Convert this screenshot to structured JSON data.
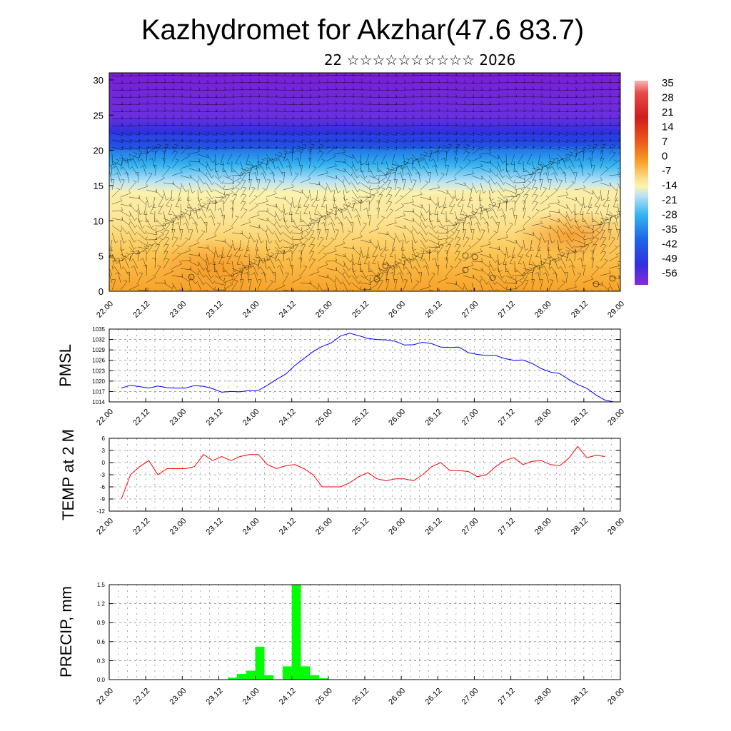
{
  "title": "Kazhydromet for Akzhar(47.6 83.7)",
  "subtitle": "22 ☆☆☆☆☆☆☆☆☆☆ 2026",
  "colors": {
    "pmsl_line": "#0000ff",
    "temp_line": "#ff0000",
    "precip_bar": "#00ff00",
    "barb": "#000000",
    "grid": "#000000"
  },
  "chart_data": [
    {
      "id": "cross-section",
      "type": "heatmap",
      "ylim": [
        0,
        30
      ],
      "y_ticks": [
        "0",
        "5",
        "10",
        "15",
        "20",
        "25",
        "30"
      ],
      "x_ticks": [
        "22.00",
        "22.12",
        "23.00",
        "23.12",
        "24.00",
        "24.12",
        "25.00",
        "25.12",
        "26.00",
        "26.12",
        "27.00",
        "27.12",
        "28.00",
        "28.12",
        "29.00"
      ],
      "colorbar_levels": [
        "35",
        "28",
        "21",
        "14",
        "7",
        "0",
        "-7",
        "-14",
        "-21",
        "-28",
        "-35",
        "-42",
        "-49",
        "-56"
      ]
    },
    {
      "id": "pmsl",
      "type": "line",
      "ylabel": "PMSL",
      "ylim": [
        1014,
        1035
      ],
      "y_ticks": [
        "1014",
        "1017",
        "1020",
        "1023",
        "1026",
        "1029",
        "1032",
        "1035"
      ],
      "x_ticks": [
        "22.00",
        "22.12",
        "23.00",
        "23.12",
        "24.00",
        "24.12",
        "25.00",
        "25.12",
        "26.00",
        "26.12",
        "27.00",
        "27.12",
        "28.00",
        "28.12",
        "29.00"
      ],
      "x_hours": [
        0,
        3,
        6,
        9,
        12,
        15,
        18,
        21,
        24,
        27,
        30,
        33,
        36,
        39,
        42,
        45,
        48,
        51,
        54,
        57,
        60,
        63,
        66,
        69,
        72,
        75,
        78,
        81,
        84,
        87,
        90,
        93,
        96,
        99,
        102,
        105,
        108,
        111,
        114,
        117,
        120,
        123,
        126,
        129,
        132,
        135,
        138,
        141,
        144,
        147,
        150,
        153,
        156,
        159,
        162
      ],
      "values": [
        1018,
        1018.8,
        1018.4,
        1018,
        1018.6,
        1018.1,
        1018,
        1018,
        1018.7,
        1018.5,
        1017.8,
        1016.8,
        1017,
        1016.9,
        1017.3,
        1017.3,
        1018.8,
        1020.5,
        1022,
        1024.5,
        1026.5,
        1028.5,
        1030,
        1031,
        1033,
        1033.8,
        1033.1,
        1032.3,
        1032,
        1031.9,
        1031.5,
        1030.4,
        1030.5,
        1031.2,
        1030.8,
        1029.8,
        1029.7,
        1029.8,
        1028.2,
        1027.7,
        1027.4,
        1027.4,
        1026.5,
        1026,
        1026.1,
        1025.1,
        1023.6,
        1022.6,
        1022.2,
        1020.5,
        1019,
        1017.9,
        1016,
        1014.5,
        1014
      ]
    },
    {
      "id": "temp",
      "type": "line",
      "ylabel": "TEMP at 2 M",
      "ylim": [
        -12,
        6
      ],
      "y_ticks": [
        "-12",
        "-9",
        "-6",
        "-3",
        "0",
        "3",
        "6"
      ],
      "x_ticks": [
        "22.00",
        "22.12",
        "23.00",
        "23.12",
        "24.00",
        "24.12",
        "25.00",
        "25.12",
        "26.00",
        "26.12",
        "27.00",
        "27.12",
        "28.00",
        "28.12",
        "29.00"
      ],
      "x_hours": [
        0,
        3,
        6,
        9,
        12,
        15,
        18,
        21,
        24,
        27,
        30,
        33,
        36,
        39,
        42,
        45,
        48,
        51,
        54,
        57,
        60,
        63,
        66,
        69,
        72,
        75,
        78,
        81,
        84,
        87,
        90,
        93,
        96,
        99,
        102,
        105,
        108,
        111,
        114,
        117,
        120,
        123,
        126,
        129,
        132,
        135,
        138,
        141,
        144,
        147,
        150,
        153,
        156,
        159
      ],
      "values": [
        -9,
        -3,
        -1,
        0.5,
        -3,
        -1.5,
        -1.5,
        -1.5,
        -1,
        2,
        0.5,
        1.5,
        0.5,
        1.5,
        2,
        2,
        -0.5,
        -1.5,
        -0.8,
        -0.5,
        -1.5,
        -3,
        -6,
        -6,
        -6,
        -5,
        -3.5,
        -2.5,
        -4,
        -4.5,
        -4,
        -4,
        -4.5,
        -3,
        -1,
        0,
        -2,
        -2,
        -2.2,
        -3.5,
        -3,
        -1,
        0.5,
        1.2,
        -0.5,
        0.3,
        0.5,
        -0.5,
        -0.8,
        1,
        4,
        1.2,
        1.8,
        1.5
      ]
    },
    {
      "id": "precip",
      "type": "bar",
      "ylabel": "PRECIP, mm",
      "ylim": [
        0,
        1.5
      ],
      "y_ticks": [
        "0.0",
        "0.3",
        "0.6",
        "0.9",
        "1.2",
        "1.5"
      ],
      "x_ticks": [
        "22.00",
        "22.12",
        "23.00",
        "23.12",
        "24.00",
        "24.12",
        "25.00",
        "25.12",
        "26.00",
        "26.12",
        "27.00",
        "27.12",
        "28.00",
        "28.12",
        "29.00"
      ],
      "bar_hours": [
        39,
        42,
        45,
        48,
        51,
        57,
        60,
        63,
        66,
        69
      ],
      "bar_width_hours": 3,
      "values": [
        0.03,
        0.09,
        0.14,
        0.52,
        0.07,
        0.21,
        1.5,
        0.21,
        0.07,
        0.02
      ]
    }
  ]
}
